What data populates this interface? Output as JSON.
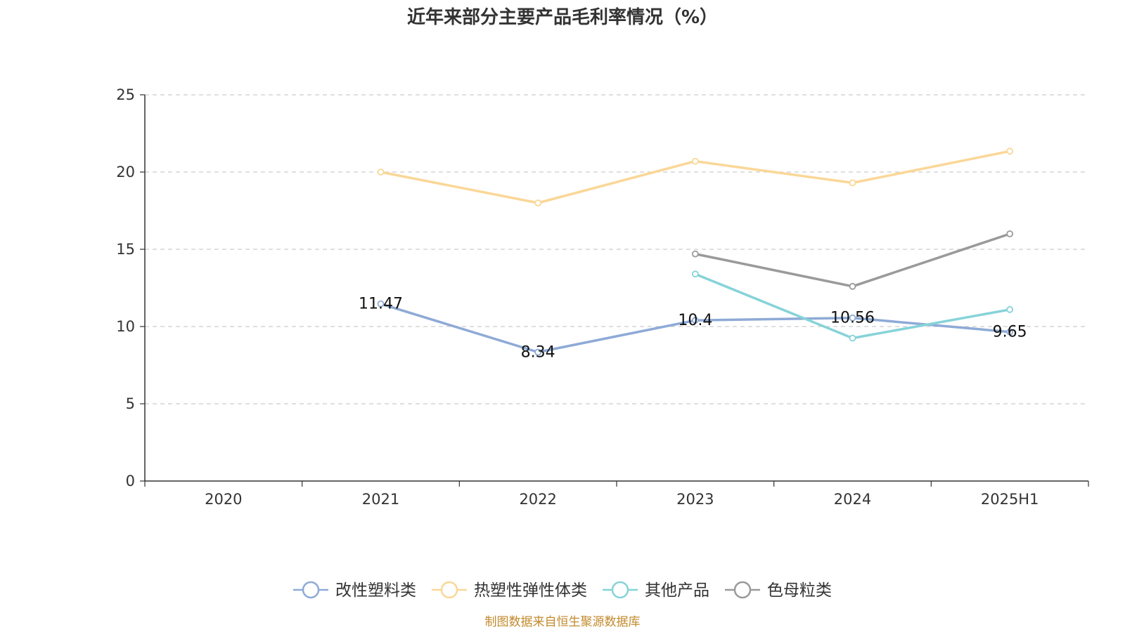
{
  "chart_data": {
    "type": "line",
    "title": "近年来部分主要产品毛利率情况（%）",
    "categories": [
      "2020",
      "2021",
      "2022",
      "2023",
      "2024",
      "2025H1"
    ],
    "ylim": [
      0,
      25
    ],
    "yticks": [
      0,
      5,
      10,
      15,
      20,
      25
    ],
    "grid": true,
    "legend_position": "bottom",
    "series": [
      {
        "name": "改性塑料类",
        "color": "#8eaad6",
        "values": [
          null,
          11.47,
          8.34,
          10.4,
          10.56,
          9.65
        ],
        "labels": [
          "",
          "11.47",
          "8.34",
          "10.4",
          "10.56",
          "9.65"
        ]
      },
      {
        "name": "热塑性弹性体类",
        "color": "#fad797",
        "values": [
          null,
          20.0,
          18.0,
          20.7,
          19.3,
          21.35
        ],
        "labels": [
          "",
          "",
          "",
          "",
          "",
          ""
        ]
      },
      {
        "name": "其他产品",
        "color": "#86d3d8",
        "values": [
          null,
          null,
          null,
          13.4,
          9.25,
          11.1
        ],
        "labels": [
          "",
          "",
          "",
          "",
          "",
          ""
        ]
      },
      {
        "name": "色母粒类",
        "color": "#9a9a9a",
        "values": [
          null,
          null,
          null,
          14.7,
          12.6,
          16.0
        ],
        "labels": [
          "",
          "",
          "",
          "",
          "",
          ""
        ]
      }
    ]
  },
  "source": "制图数据来自恒生聚源数据库"
}
